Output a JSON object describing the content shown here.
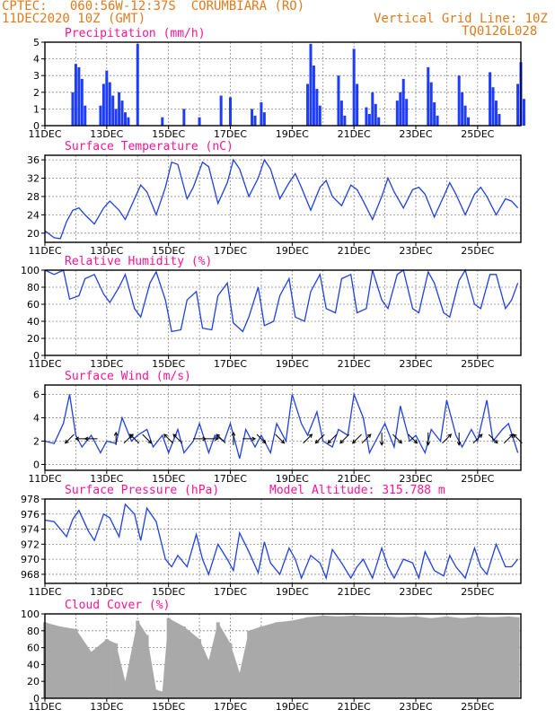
{
  "header": {
    "line1": "CPTEC:   060:56W-12:37S  CORUMBIARA (RO)",
    "line2": "11DEC2020 10Z (GMT)",
    "grid_note": "Vertical Grid Line: 10Z",
    "code": "TQ0126L028"
  },
  "colors": {
    "line": "#2040e0",
    "bar": "#1e3cff",
    "title": "#ff1493",
    "header": "#e07a1f",
    "cloud": "#a9a9a9"
  },
  "chart_data": [
    {
      "type": "bar",
      "title": "Precipitation (mm/h)",
      "x_tick_labels": [
        "11DEC",
        "13DEC",
        "15DEC",
        "17DEC",
        "19DEC",
        "21DEC",
        "23DEC",
        "25DEC"
      ],
      "ylim": [
        0,
        5
      ],
      "yticks": [
        0,
        1,
        2,
        3,
        4,
        5
      ],
      "grid": true,
      "x_days": [
        0.9,
        1.0,
        1.1,
        1.2,
        1.3,
        1.8,
        1.9,
        2.0,
        2.1,
        2.2,
        2.3,
        2.4,
        2.5,
        2.6,
        2.7,
        3.0,
        3.8,
        4.5,
        5.0,
        5.7,
        6.0,
        6.7,
        6.8,
        7.0,
        7.1,
        8.5,
        8.6,
        8.7,
        8.8,
        8.9,
        9.5,
        9.6,
        9.7,
        10.0,
        10.1,
        10.4,
        10.5,
        10.6,
        10.7,
        10.8,
        11.4,
        11.5,
        11.6,
        11.7,
        12.4,
        12.5,
        12.6,
        12.7,
        13.4,
        13.5,
        13.6,
        13.7,
        14.4,
        14.5,
        14.6,
        14.7,
        15.3,
        15.4,
        15.5
      ],
      "values": [
        2,
        3.7,
        3.5,
        2.8,
        1.2,
        1.2,
        2.5,
        3.3,
        2.6,
        1.8,
        1.0,
        2.0,
        1.5,
        0.8,
        0.5,
        4.9,
        0.5,
        1.0,
        0.5,
        1.8,
        1.7,
        1.0,
        0.6,
        1.4,
        0.8,
        2.5,
        4.9,
        3.6,
        2.2,
        1.2,
        3.0,
        1.5,
        0.6,
        4.6,
        2.5,
        1.1,
        0.7,
        2.0,
        1.3,
        0.5,
        1.5,
        2.0,
        2.8,
        1.6,
        3.5,
        2.6,
        1.4,
        0.6,
        3.0,
        2.0,
        1.2,
        0.5,
        3.2,
        2.3,
        1.5,
        0.7,
        2.5,
        3.8,
        1.6
      ],
      "note": "x_days are days elapsed since 11DEC 10Z"
    },
    {
      "type": "line",
      "title": "Surface Temperature (nC)",
      "x_tick_labels": [
        "11DEC",
        "13DEC",
        "15DEC",
        "17DEC",
        "19DEC",
        "21DEC",
        "23DEC",
        "25DEC"
      ],
      "ylim": [
        18,
        37
      ],
      "yticks": [
        20,
        24,
        28,
        32,
        36
      ],
      "grid": true,
      "x_days": [
        0,
        0.3,
        0.5,
        0.7,
        0.9,
        1.1,
        1.3,
        1.6,
        1.9,
        2.1,
        2.4,
        2.6,
        2.9,
        3.1,
        3.3,
        3.6,
        3.9,
        4.1,
        4.3,
        4.6,
        4.8,
        5.1,
        5.3,
        5.6,
        5.9,
        6.1,
        6.3,
        6.6,
        6.9,
        7.1,
        7.3,
        7.6,
        7.9,
        8.1,
        8.3,
        8.6,
        8.9,
        9.1,
        9.3,
        9.6,
        9.9,
        10.1,
        10.3,
        10.6,
        10.9,
        11.1,
        11.3,
        11.6,
        11.9,
        12.1,
        12.3,
        12.6,
        12.9,
        13.1,
        13.3,
        13.6,
        13.9,
        14.1,
        14.3,
        14.6,
        14.9,
        15.1,
        15.3
      ],
      "values": [
        20.5,
        19.0,
        18.8,
        22.5,
        25.0,
        25.5,
        24.0,
        22.0,
        25.5,
        27.0,
        25.0,
        23.0,
        27.5,
        30.5,
        29.0,
        24.0,
        30.0,
        35.5,
        35.0,
        27.5,
        30.0,
        35.5,
        34.5,
        26.5,
        31.0,
        36.0,
        34.0,
        28.0,
        32.0,
        36.0,
        34.0,
        27.5,
        31.0,
        33.0,
        30.0,
        25.0,
        30.0,
        31.5,
        28.0,
        26.0,
        30.5,
        29.5,
        27.0,
        23.0,
        28.0,
        32.0,
        29.0,
        25.5,
        29.5,
        30.0,
        28.5,
        23.5,
        28.0,
        31.0,
        28.5,
        24.0,
        28.5,
        30.0,
        28.0,
        24.0,
        27.5,
        27.0,
        25.5
      ]
    },
    {
      "type": "line",
      "title": "Relative Humidity (%)",
      "x_tick_labels": [
        "11DEC",
        "13DEC",
        "15DEC",
        "17DEC",
        "19DEC",
        "21DEC",
        "23DEC",
        "25DEC"
      ],
      "ylim": [
        0,
        100
      ],
      "yticks": [
        0,
        20,
        40,
        60,
        80,
        100
      ],
      "grid": true,
      "x_days": [
        0,
        0.3,
        0.6,
        0.8,
        1.1,
        1.3,
        1.6,
        1.9,
        2.1,
        2.4,
        2.6,
        2.9,
        3.1,
        3.4,
        3.6,
        3.9,
        4.1,
        4.4,
        4.6,
        4.9,
        5.1,
        5.4,
        5.6,
        5.9,
        6.1,
        6.4,
        6.6,
        6.9,
        7.1,
        7.4,
        7.6,
        7.9,
        8.1,
        8.4,
        8.6,
        8.9,
        9.1,
        9.4,
        9.6,
        9.9,
        10.1,
        10.4,
        10.6,
        10.9,
        11.1,
        11.4,
        11.6,
        11.9,
        12.1,
        12.4,
        12.6,
        12.9,
        13.1,
        13.4,
        13.6,
        13.9,
        14.1,
        14.4,
        14.6,
        14.9,
        15.1,
        15.3
      ],
      "values": [
        100,
        95,
        100,
        66,
        70,
        90,
        95,
        72,
        62,
        80,
        95,
        55,
        45,
        85,
        98,
        65,
        28,
        30,
        65,
        75,
        32,
        30,
        70,
        85,
        38,
        28,
        45,
        80,
        35,
        40,
        70,
        90,
        45,
        40,
        75,
        95,
        55,
        50,
        90,
        95,
        50,
        55,
        100,
        65,
        55,
        95,
        100,
        55,
        50,
        98,
        85,
        50,
        45,
        88,
        100,
        60,
        55,
        95,
        95,
        55,
        65,
        85
      ]
    },
    {
      "type": "line",
      "title": "Surface Wind (m/s)",
      "x_tick_labels": [
        "11DEC",
        "13DEC",
        "15DEC",
        "17DEC",
        "19DEC",
        "21DEC",
        "23DEC",
        "25DEC"
      ],
      "ylim": [
        -0.5,
        6.8
      ],
      "yticks": [
        0,
        2,
        4,
        6
      ],
      "grid": true,
      "x_days": [
        0,
        0.3,
        0.6,
        0.8,
        1.0,
        1.2,
        1.5,
        1.8,
        2.0,
        2.3,
        2.5,
        2.8,
        3.0,
        3.3,
        3.5,
        3.8,
        4.0,
        4.3,
        4.5,
        4.8,
        5.0,
        5.3,
        5.5,
        5.8,
        6.0,
        6.3,
        6.5,
        6.8,
        7.0,
        7.3,
        7.5,
        7.8,
        8.0,
        8.3,
        8.5,
        8.8,
        9.0,
        9.3,
        9.5,
        9.8,
        10.0,
        10.3,
        10.5,
        10.8,
        11.0,
        11.3,
        11.5,
        11.8,
        12.0,
        12.3,
        12.5,
        12.8,
        13.0,
        13.3,
        13.5,
        13.8,
        14.0,
        14.3,
        14.5,
        14.8,
        15.0,
        15.3
      ],
      "values": [
        2.0,
        1.8,
        3.5,
        6.0,
        2.5,
        1.5,
        2.5,
        1.0,
        2.0,
        1.8,
        4.0,
        2.0,
        2.5,
        3.0,
        1.5,
        2.5,
        1.0,
        3.0,
        1.0,
        2.0,
        3.5,
        1.0,
        2.5,
        2.0,
        3.5,
        0.5,
        3.0,
        1.5,
        2.5,
        1.0,
        3.5,
        2.0,
        6.0,
        3.5,
        2.5,
        4.5,
        2.0,
        1.5,
        3.0,
        2.5,
        6.0,
        4.0,
        1.0,
        2.5,
        3.5,
        1.5,
        5.0,
        2.0,
        2.5,
        1.0,
        3.0,
        2.0,
        5.5,
        2.5,
        1.5,
        3.0,
        2.0,
        5.5,
        2.0,
        3.0,
        3.5,
        1.0
      ],
      "arrows": [
        {
          "day": 0.8,
          "dir": "sw"
        },
        {
          "day": 1.2,
          "dir": "w"
        },
        {
          "day": 1.5,
          "dir": "w"
        },
        {
          "day": 2.3,
          "dir": "n"
        },
        {
          "day": 2.7,
          "dir": "ne"
        },
        {
          "day": 2.9,
          "dir": "nw"
        },
        {
          "day": 3.3,
          "dir": "se"
        },
        {
          "day": 4.0,
          "dir": "nw"
        },
        {
          "day": 4.3,
          "dir": "nw"
        },
        {
          "day": 5.0,
          "dir": "e"
        },
        {
          "day": 5.4,
          "dir": "e"
        },
        {
          "day": 5.7,
          "dir": "nw"
        },
        {
          "day": 6.1,
          "dir": "n"
        },
        {
          "day": 6.6,
          "dir": "e"
        },
        {
          "day": 7.0,
          "dir": "se"
        },
        {
          "day": 7.6,
          "dir": "se"
        },
        {
          "day": 8.5,
          "dir": "ne"
        },
        {
          "day": 8.9,
          "dir": "sw"
        },
        {
          "day": 9.3,
          "dir": "sw"
        },
        {
          "day": 9.7,
          "dir": "sw"
        },
        {
          "day": 10.1,
          "dir": "sw"
        },
        {
          "day": 10.4,
          "dir": "ne"
        },
        {
          "day": 10.9,
          "dir": "s"
        },
        {
          "day": 11.4,
          "dir": "se"
        },
        {
          "day": 11.9,
          "dir": "se"
        },
        {
          "day": 12.4,
          "dir": "s"
        },
        {
          "day": 13.0,
          "dir": "ne"
        },
        {
          "day": 13.4,
          "dir": "s"
        },
        {
          "day": 14.0,
          "dir": "ne"
        },
        {
          "day": 14.5,
          "dir": "se"
        },
        {
          "day": 15.0,
          "dir": "ne"
        },
        {
          "day": 15.3,
          "dir": "nw"
        }
      ]
    },
    {
      "type": "line",
      "title": "Surface Pressure (hPa)",
      "annotation": "Model Altitude: 315.788 m",
      "x_tick_labels": [
        "11DEC",
        "13DEC",
        "15DEC",
        "17DEC",
        "19DEC",
        "21DEC",
        "23DEC",
        "25DEC"
      ],
      "ylim": [
        966.8,
        978
      ],
      "yticks": [
        968,
        970,
        972,
        974,
        976,
        978
      ],
      "grid": true,
      "x_days": [
        0,
        0.3,
        0.5,
        0.7,
        0.9,
        1.1,
        1.4,
        1.6,
        1.9,
        2.1,
        2.4,
        2.6,
        2.9,
        3.1,
        3.3,
        3.6,
        3.9,
        4.1,
        4.3,
        4.6,
        4.9,
        5.1,
        5.3,
        5.6,
        5.9,
        6.1,
        6.3,
        6.6,
        6.9,
        7.1,
        7.3,
        7.6,
        7.9,
        8.1,
        8.3,
        8.6,
        8.9,
        9.1,
        9.3,
        9.6,
        9.9,
        10.1,
        10.3,
        10.6,
        10.9,
        11.1,
        11.3,
        11.6,
        11.9,
        12.1,
        12.3,
        12.6,
        12.9,
        13.1,
        13.3,
        13.6,
        13.9,
        14.1,
        14.3,
        14.6,
        14.9,
        15.1,
        15.3
      ],
      "values": [
        975.2,
        975.0,
        974.0,
        973.0,
        975.3,
        976.5,
        973.8,
        972.5,
        976.0,
        975.5,
        973.0,
        977.3,
        976.0,
        972.5,
        976.8,
        975.0,
        970.0,
        969.0,
        970.5,
        969.0,
        973.3,
        970.0,
        968.0,
        972.0,
        970.0,
        968.5,
        973.5,
        971.0,
        968.2,
        972.3,
        969.5,
        968.0,
        971.5,
        970.0,
        967.5,
        970.5,
        969.5,
        967.5,
        971.3,
        969.5,
        967.5,
        969.0,
        970.0,
        967.5,
        971.5,
        969.0,
        967.5,
        970.0,
        969.5,
        967.5,
        971.0,
        968.5,
        967.8,
        970.5,
        969.0,
        967.5,
        971.5,
        969.0,
        968.0,
        972.0,
        969.0,
        969.0,
        970.0
      ]
    },
    {
      "type": "bar",
      "title": "Cloud Cover (%)",
      "x_tick_labels": [
        "11DEC",
        "13DEC",
        "15DEC",
        "17DEC",
        "19DEC",
        "21DEC",
        "23DEC",
        "25DEC"
      ],
      "ylim": [
        0,
        100
      ],
      "yticks": [
        0,
        20,
        40,
        60,
        80,
        100
      ],
      "grid": true,
      "x_days": [
        0,
        0.5,
        1.0,
        1.5,
        2.0,
        2.3,
        2.6,
        3.0,
        3.3,
        3.6,
        3.8,
        4.0,
        4.5,
        5.0,
        5.3,
        5.6,
        6.0,
        6.3,
        6.6,
        7.0,
        7.5,
        8.0,
        8.5,
        9.0,
        9.5,
        10.0,
        10.5,
        11.0,
        11.5,
        12.0,
        12.5,
        13.0,
        13.5,
        14.0,
        14.5,
        15.0,
        15.3
      ],
      "values": [
        90,
        85,
        82,
        55,
        70,
        65,
        20,
        92,
        75,
        10,
        8,
        95,
        85,
        70,
        45,
        90,
        65,
        30,
        80,
        85,
        90,
        92,
        96,
        98,
        97,
        98,
        97,
        97,
        96,
        97,
        95,
        97,
        95,
        97,
        96,
        97,
        96
      ]
    }
  ]
}
